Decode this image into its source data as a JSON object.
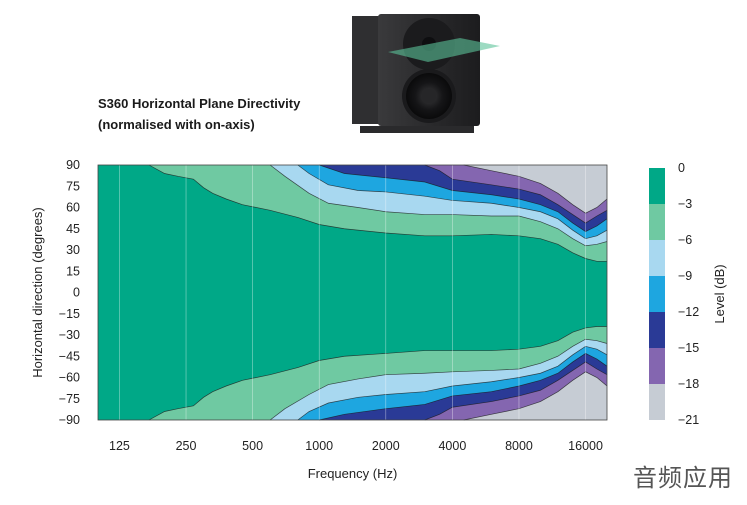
{
  "title_line1": "S360 Horizontal Plane Directivity",
  "title_line2": "(normalised with on-axis)",
  "watermark": "音频应用",
  "chart_data": {
    "type": "heatmap",
    "xlabel": "Frequency (Hz)",
    "ylabel": "Horizontal direction (degrees)",
    "x_scale": "log",
    "xlim": [
      100,
      20000
    ],
    "ylim": [
      -90,
      90
    ],
    "x_ticks": [
      125,
      250,
      500,
      1000,
      2000,
      4000,
      8000,
      16000
    ],
    "x_tick_labels": [
      "125",
      "250",
      "500",
      "1000",
      "2000",
      "4000",
      "8000",
      "16000"
    ],
    "y_ticks": [
      90,
      75,
      60,
      45,
      30,
      15,
      0,
      -15,
      -30,
      -45,
      -60,
      -75,
      -90
    ],
    "y_tick_labels": [
      "90",
      "75",
      "60",
      "45",
      "30",
      "15",
      "0",
      "−15",
      "−30",
      "−45",
      "−60",
      "−75",
      "−90"
    ],
    "colorbar": {
      "label": "Level (dB)",
      "levels": [
        0,
        -3,
        -6,
        -9,
        -12,
        -15,
        -18,
        -21
      ],
      "level_labels": [
        "0",
        "−3",
        "−6",
        "−9",
        "−12",
        "−15",
        "−18",
        "−21"
      ],
      "colors": [
        "#00a887",
        "#6fc9a2",
        "#a8d8f0",
        "#1ea6e0",
        "#2a3a96",
        "#8466b0",
        "#c6ccd4"
      ]
    },
    "contours_upper": [
      {
        "level": -3,
        "points": [
          [
            170,
            90
          ],
          [
            200,
            84
          ],
          [
            230,
            82
          ],
          [
            270,
            80
          ],
          [
            300,
            74
          ],
          [
            330,
            70
          ],
          [
            380,
            66
          ],
          [
            450,
            62
          ],
          [
            600,
            58
          ],
          [
            800,
            53
          ],
          [
            1000,
            48
          ],
          [
            1300,
            45
          ],
          [
            2000,
            42
          ],
          [
            3000,
            40
          ],
          [
            4000,
            40
          ],
          [
            6000,
            41
          ],
          [
            8000,
            40
          ],
          [
            10000,
            38
          ],
          [
            12000,
            34
          ],
          [
            14000,
            28
          ],
          [
            16000,
            24
          ],
          [
            18000,
            22
          ],
          [
            20000,
            22
          ]
        ]
      },
      {
        "level": -6,
        "points": [
          [
            600,
            90
          ],
          [
            700,
            82
          ],
          [
            900,
            70
          ],
          [
            1100,
            63
          ],
          [
            1500,
            60
          ],
          [
            2000,
            57
          ],
          [
            3000,
            55
          ],
          [
            4000,
            55
          ],
          [
            6000,
            54
          ],
          [
            8000,
            54
          ],
          [
            10000,
            50
          ],
          [
            12000,
            45
          ],
          [
            14000,
            38
          ],
          [
            16000,
            33
          ],
          [
            18000,
            34
          ],
          [
            20000,
            36
          ]
        ]
      },
      {
        "level": -9,
        "points": [
          [
            800,
            90
          ],
          [
            900,
            84
          ],
          [
            1100,
            76
          ],
          [
            1500,
            72
          ],
          [
            2000,
            71
          ],
          [
            3000,
            68
          ],
          [
            4000,
            65
          ],
          [
            6000,
            63
          ],
          [
            8000,
            60
          ],
          [
            10000,
            57
          ],
          [
            12000,
            52
          ],
          [
            14000,
            44
          ],
          [
            16000,
            38
          ],
          [
            18000,
            40
          ],
          [
            20000,
            44
          ]
        ]
      },
      {
        "level": -12,
        "points": [
          [
            1000,
            90
          ],
          [
            1300,
            84
          ],
          [
            2000,
            81
          ],
          [
            3000,
            78
          ],
          [
            4000,
            72
          ],
          [
            6000,
            69
          ],
          [
            8000,
            66
          ],
          [
            10000,
            62
          ],
          [
            12000,
            57
          ],
          [
            14000,
            49
          ],
          [
            16000,
            43
          ],
          [
            18000,
            47
          ],
          [
            20000,
            52
          ]
        ]
      },
      {
        "level": -15,
        "points": [
          [
            3000,
            90
          ],
          [
            3500,
            86
          ],
          [
            4000,
            80
          ],
          [
            6000,
            76
          ],
          [
            8000,
            73
          ],
          [
            10000,
            69
          ],
          [
            12000,
            62
          ],
          [
            14000,
            55
          ],
          [
            16000,
            49
          ],
          [
            18000,
            54
          ],
          [
            20000,
            58
          ]
        ]
      },
      {
        "level": -18,
        "points": [
          [
            4500,
            90
          ],
          [
            6000,
            86
          ],
          [
            8000,
            82
          ],
          [
            10000,
            77
          ],
          [
            12000,
            70
          ],
          [
            14000,
            62
          ],
          [
            16000,
            56
          ],
          [
            18000,
            60
          ],
          [
            20000,
            66
          ]
        ]
      }
    ],
    "contours_lower": [
      {
        "level": -3,
        "points": [
          [
            170,
            -90
          ],
          [
            200,
            -84
          ],
          [
            230,
            -82
          ],
          [
            270,
            -80
          ],
          [
            300,
            -74
          ],
          [
            330,
            -70
          ],
          [
            380,
            -66
          ],
          [
            450,
            -62
          ],
          [
            600,
            -58
          ],
          [
            800,
            -53
          ],
          [
            1000,
            -48
          ],
          [
            1300,
            -45
          ],
          [
            2000,
            -43
          ],
          [
            3000,
            -41
          ],
          [
            4000,
            -41
          ],
          [
            6000,
            -41
          ],
          [
            8000,
            -40
          ],
          [
            10000,
            -38
          ],
          [
            12000,
            -34
          ],
          [
            14000,
            -28
          ],
          [
            16000,
            -25
          ],
          [
            18000,
            -24
          ],
          [
            20000,
            -24
          ]
        ]
      },
      {
        "level": -6,
        "points": [
          [
            600,
            -90
          ],
          [
            700,
            -82
          ],
          [
            900,
            -72
          ],
          [
            1100,
            -65
          ],
          [
            1500,
            -61
          ],
          [
            2000,
            -58
          ],
          [
            3000,
            -57
          ],
          [
            4000,
            -56
          ],
          [
            6000,
            -55
          ],
          [
            8000,
            -54
          ],
          [
            10000,
            -50
          ],
          [
            12000,
            -45
          ],
          [
            14000,
            -38
          ],
          [
            16000,
            -33
          ],
          [
            18000,
            -34
          ],
          [
            20000,
            -36
          ]
        ]
      },
      {
        "level": -9,
        "points": [
          [
            800,
            -90
          ],
          [
            900,
            -84
          ],
          [
            1100,
            -78
          ],
          [
            1500,
            -74
          ],
          [
            2000,
            -72
          ],
          [
            3000,
            -70
          ],
          [
            4000,
            -66
          ],
          [
            6000,
            -63
          ],
          [
            8000,
            -60
          ],
          [
            10000,
            -57
          ],
          [
            12000,
            -52
          ],
          [
            14000,
            -44
          ],
          [
            16000,
            -38
          ],
          [
            18000,
            -40
          ],
          [
            20000,
            -44
          ]
        ]
      },
      {
        "level": -12,
        "points": [
          [
            1000,
            -90
          ],
          [
            1300,
            -86
          ],
          [
            2000,
            -82
          ],
          [
            3000,
            -79
          ],
          [
            4000,
            -73
          ],
          [
            6000,
            -70
          ],
          [
            8000,
            -66
          ],
          [
            10000,
            -62
          ],
          [
            12000,
            -57
          ],
          [
            14000,
            -49
          ],
          [
            16000,
            -43
          ],
          [
            18000,
            -47
          ],
          [
            20000,
            -52
          ]
        ]
      },
      {
        "level": -15,
        "points": [
          [
            3000,
            -90
          ],
          [
            3500,
            -86
          ],
          [
            4000,
            -81
          ],
          [
            6000,
            -77
          ],
          [
            8000,
            -73
          ],
          [
            10000,
            -69
          ],
          [
            12000,
            -62
          ],
          [
            14000,
            -55
          ],
          [
            16000,
            -49
          ],
          [
            18000,
            -54
          ],
          [
            20000,
            -58
          ]
        ]
      },
      {
        "level": -18,
        "points": [
          [
            4500,
            -90
          ],
          [
            6000,
            -86
          ],
          [
            8000,
            -82
          ],
          [
            10000,
            -77
          ],
          [
            12000,
            -70
          ],
          [
            14000,
            -62
          ],
          [
            16000,
            -56
          ],
          [
            18000,
            -60
          ],
          [
            20000,
            -66
          ]
        ]
      }
    ]
  }
}
